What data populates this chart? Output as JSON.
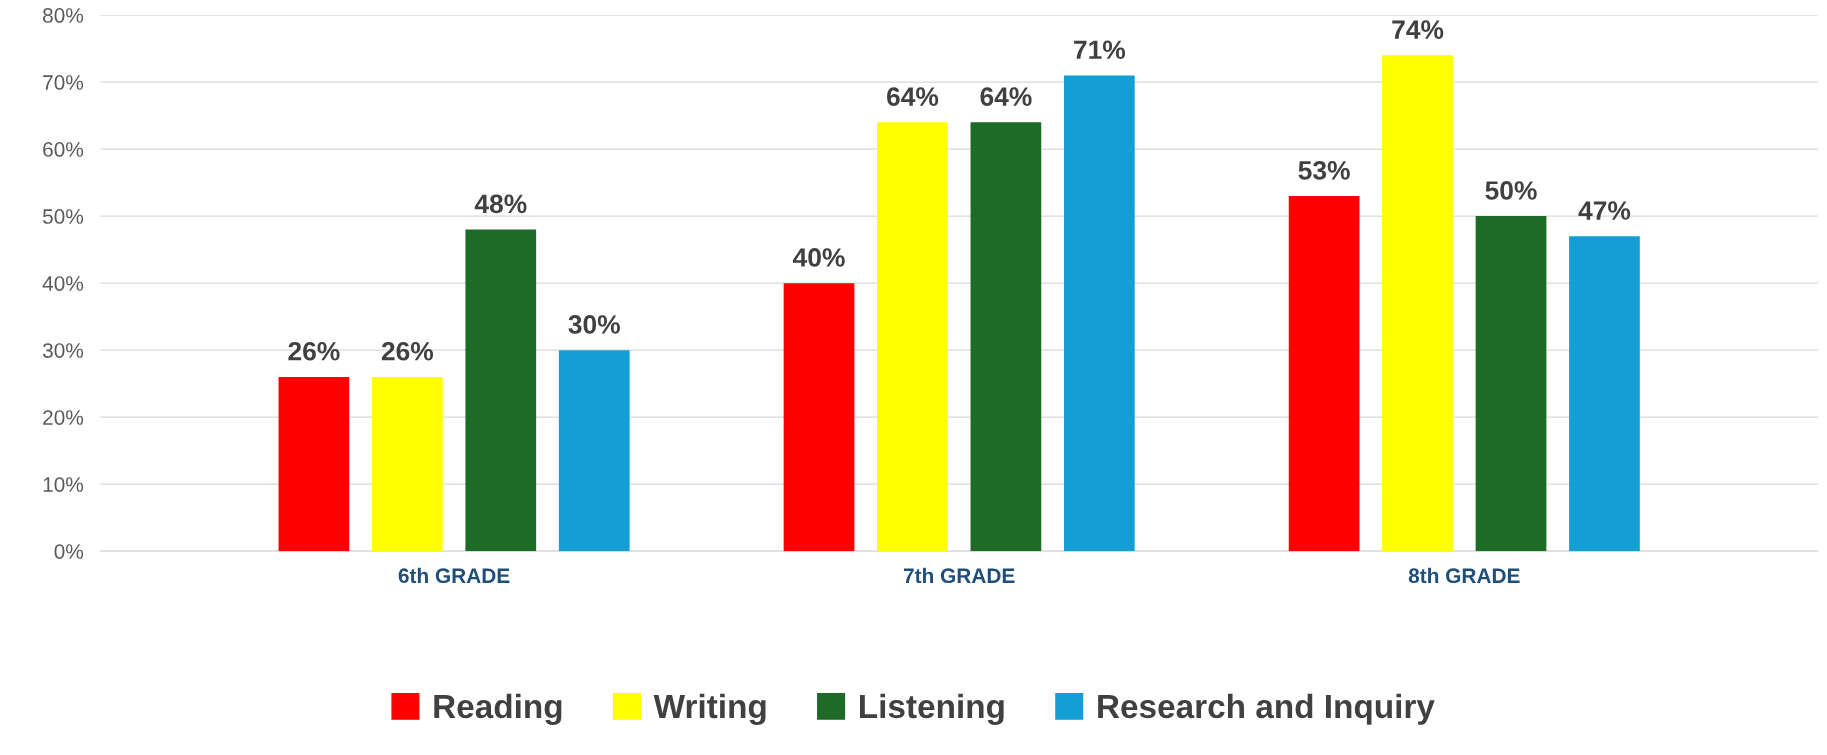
{
  "chart_data": {
    "type": "bar",
    "categories": [
      "6th GRADE",
      "7th GRADE",
      "8th GRADE"
    ],
    "series": [
      {
        "name": "Reading",
        "color": "#ff0000",
        "values": [
          26,
          40,
          53
        ]
      },
      {
        "name": "Writing",
        "color": "#ffff00",
        "values": [
          26,
          64,
          74
        ]
      },
      {
        "name": "Listening",
        "color": "#1d6b27",
        "values": [
          48,
          64,
          50
        ]
      },
      {
        "name": "Research and Inquiry",
        "color": "#139fd6",
        "values": [
          30,
          71,
          47
        ]
      }
    ],
    "ylim": [
      0,
      80
    ],
    "yticks": [
      {
        "value": 0,
        "label": "0%"
      },
      {
        "value": 10,
        "label": "10%"
      },
      {
        "value": 20,
        "label": "20%"
      },
      {
        "value": 30,
        "label": "30%"
      },
      {
        "value": 40,
        "label": "40%"
      },
      {
        "value": 50,
        "label": "50%"
      },
      {
        "value": 60,
        "label": "60%"
      },
      {
        "value": 70,
        "label": "70%"
      },
      {
        "value": 80,
        "label": "80%"
      }
    ],
    "value_labels": [
      [
        "26%",
        "40%",
        "53%"
      ],
      [
        "26%",
        "64%",
        "74%"
      ],
      [
        "48%",
        "64%",
        "50%"
      ],
      [
        "30%",
        "71%",
        "47%"
      ]
    ],
    "grid": "y",
    "legend": "bottom"
  }
}
